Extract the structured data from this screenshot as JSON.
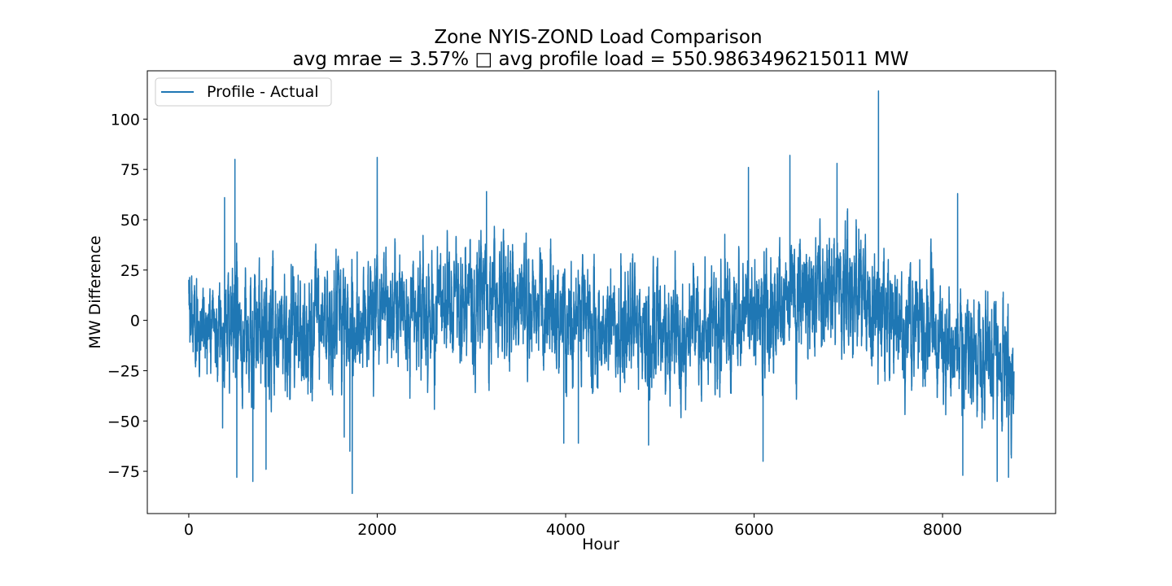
{
  "chart_data": {
    "type": "line",
    "title_line1": "Zone NYIS-ZOND Load Comparison",
    "title_line2": "avg mrae = 3.57% □ avg profile load = 550.9863496215011 MW",
    "xlabel": "Hour",
    "ylabel": "MW Difference",
    "xlim": [
      -440,
      9200
    ],
    "ylim": [
      -96,
      124
    ],
    "xticks": [
      0,
      2000,
      4000,
      6000,
      8000
    ],
    "xtick_labels": [
      "0",
      "2000",
      "4000",
      "6000",
      "8000"
    ],
    "yticks": [
      -75,
      -50,
      -25,
      0,
      25,
      50,
      75,
      100
    ],
    "ytick_labels": [
      "−75",
      "−50",
      "−25",
      "0",
      "25",
      "50",
      "75",
      "100"
    ],
    "grid": false,
    "legend_position": "top-left",
    "series": [
      {
        "name": "Profile - Actual",
        "color": "#1f77b4",
        "x_start": 0,
        "x_step": 1,
        "n_points": 8760,
        "trend_knots": [
          [
            0,
            0
          ],
          [
            250,
            -3
          ],
          [
            500,
            -3
          ],
          [
            750,
            -8
          ],
          [
            1000,
            -6
          ],
          [
            1250,
            -6
          ],
          [
            1500,
            -1
          ],
          [
            1750,
            -2
          ],
          [
            2000,
            7
          ],
          [
            2250,
            9
          ],
          [
            2500,
            6
          ],
          [
            2750,
            8
          ],
          [
            3000,
            10
          ],
          [
            3250,
            12
          ],
          [
            3500,
            10
          ],
          [
            3750,
            6
          ],
          [
            4000,
            2
          ],
          [
            4250,
            0
          ],
          [
            4500,
            -3
          ],
          [
            4750,
            -6
          ],
          [
            5000,
            -8
          ],
          [
            5250,
            -8
          ],
          [
            5500,
            -5
          ],
          [
            5750,
            -2
          ],
          [
            6000,
            2
          ],
          [
            6250,
            6
          ],
          [
            6500,
            12
          ],
          [
            6750,
            16
          ],
          [
            7000,
            18
          ],
          [
            7250,
            8
          ],
          [
            7500,
            -2
          ],
          [
            7750,
            -6
          ],
          [
            8000,
            -10
          ],
          [
            8250,
            -15
          ],
          [
            8500,
            -18
          ],
          [
            8759,
            -20
          ]
        ],
        "noise_amplitude_mw": 22,
        "peaks": [
          [
            490,
            80
          ],
          [
            2000,
            81
          ],
          [
            6380,
            82
          ],
          [
            7320,
            114
          ],
          [
            6880,
            78
          ],
          [
            5940,
            76
          ],
          [
            3160,
            64
          ],
          [
            8160,
            63
          ],
          [
            380,
            61
          ],
          [
            1735,
            -86
          ],
          [
            680,
            -80
          ],
          [
            510,
            -78
          ],
          [
            8580,
            -80
          ],
          [
            6095,
            -70
          ],
          [
            8215,
            -77
          ],
          [
            4135,
            -61
          ],
          [
            3980,
            -61
          ],
          [
            4880,
            -62
          ],
          [
            8700,
            -78
          ],
          [
            820,
            -74
          ],
          [
            1710,
            -65
          ],
          [
            1650,
            -58
          ]
        ]
      }
    ]
  }
}
